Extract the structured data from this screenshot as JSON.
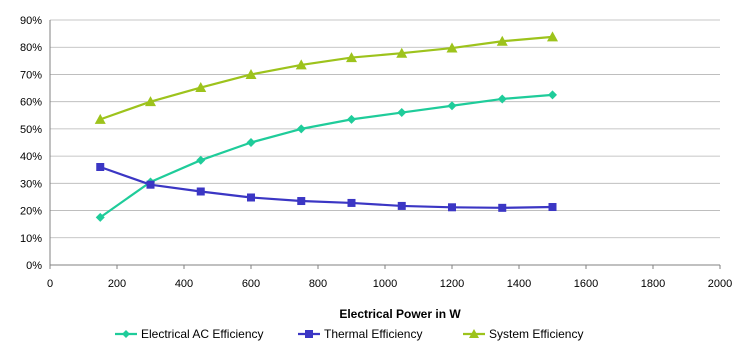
{
  "chart_data": {
    "type": "line",
    "title": "",
    "xlabel": "Electrical Power in W",
    "ylabel": "",
    "xlim": [
      0,
      2000
    ],
    "ylim": [
      0,
      90
    ],
    "x_ticks": [
      "0",
      "200",
      "400",
      "600",
      "800",
      "1000",
      "1200",
      "1400",
      "1600",
      "1800",
      "2000"
    ],
    "y_ticks": [
      "0%",
      "10%",
      "20%",
      "30%",
      "40%",
      "50%",
      "60%",
      "70%",
      "80%",
      "90%"
    ],
    "grid": "horizontal",
    "legend_position": "bottom",
    "x": [
      150,
      300,
      450,
      600,
      750,
      900,
      1050,
      1200,
      1350,
      1500
    ],
    "series": [
      {
        "name": "Electrical AC Efficiency",
        "color": "#1fcc9a",
        "marker": "diamond",
        "values": [
          17.5,
          30.5,
          38.5,
          45,
          50,
          53.5,
          56,
          58.5,
          61,
          62.5
        ]
      },
      {
        "name": "Thermal Efficiency",
        "color": "#3b36c4",
        "marker": "square",
        "values": [
          36,
          29.5,
          27,
          24.8,
          23.5,
          22.8,
          21.7,
          21.2,
          21,
          21.3
        ]
      },
      {
        "name": "System Efficiency",
        "color": "#9dc31c",
        "marker": "triangle",
        "values": [
          53.5,
          60,
          65.2,
          70,
          73.5,
          76.2,
          77.8,
          79.7,
          82.2,
          83.8
        ]
      }
    ]
  }
}
